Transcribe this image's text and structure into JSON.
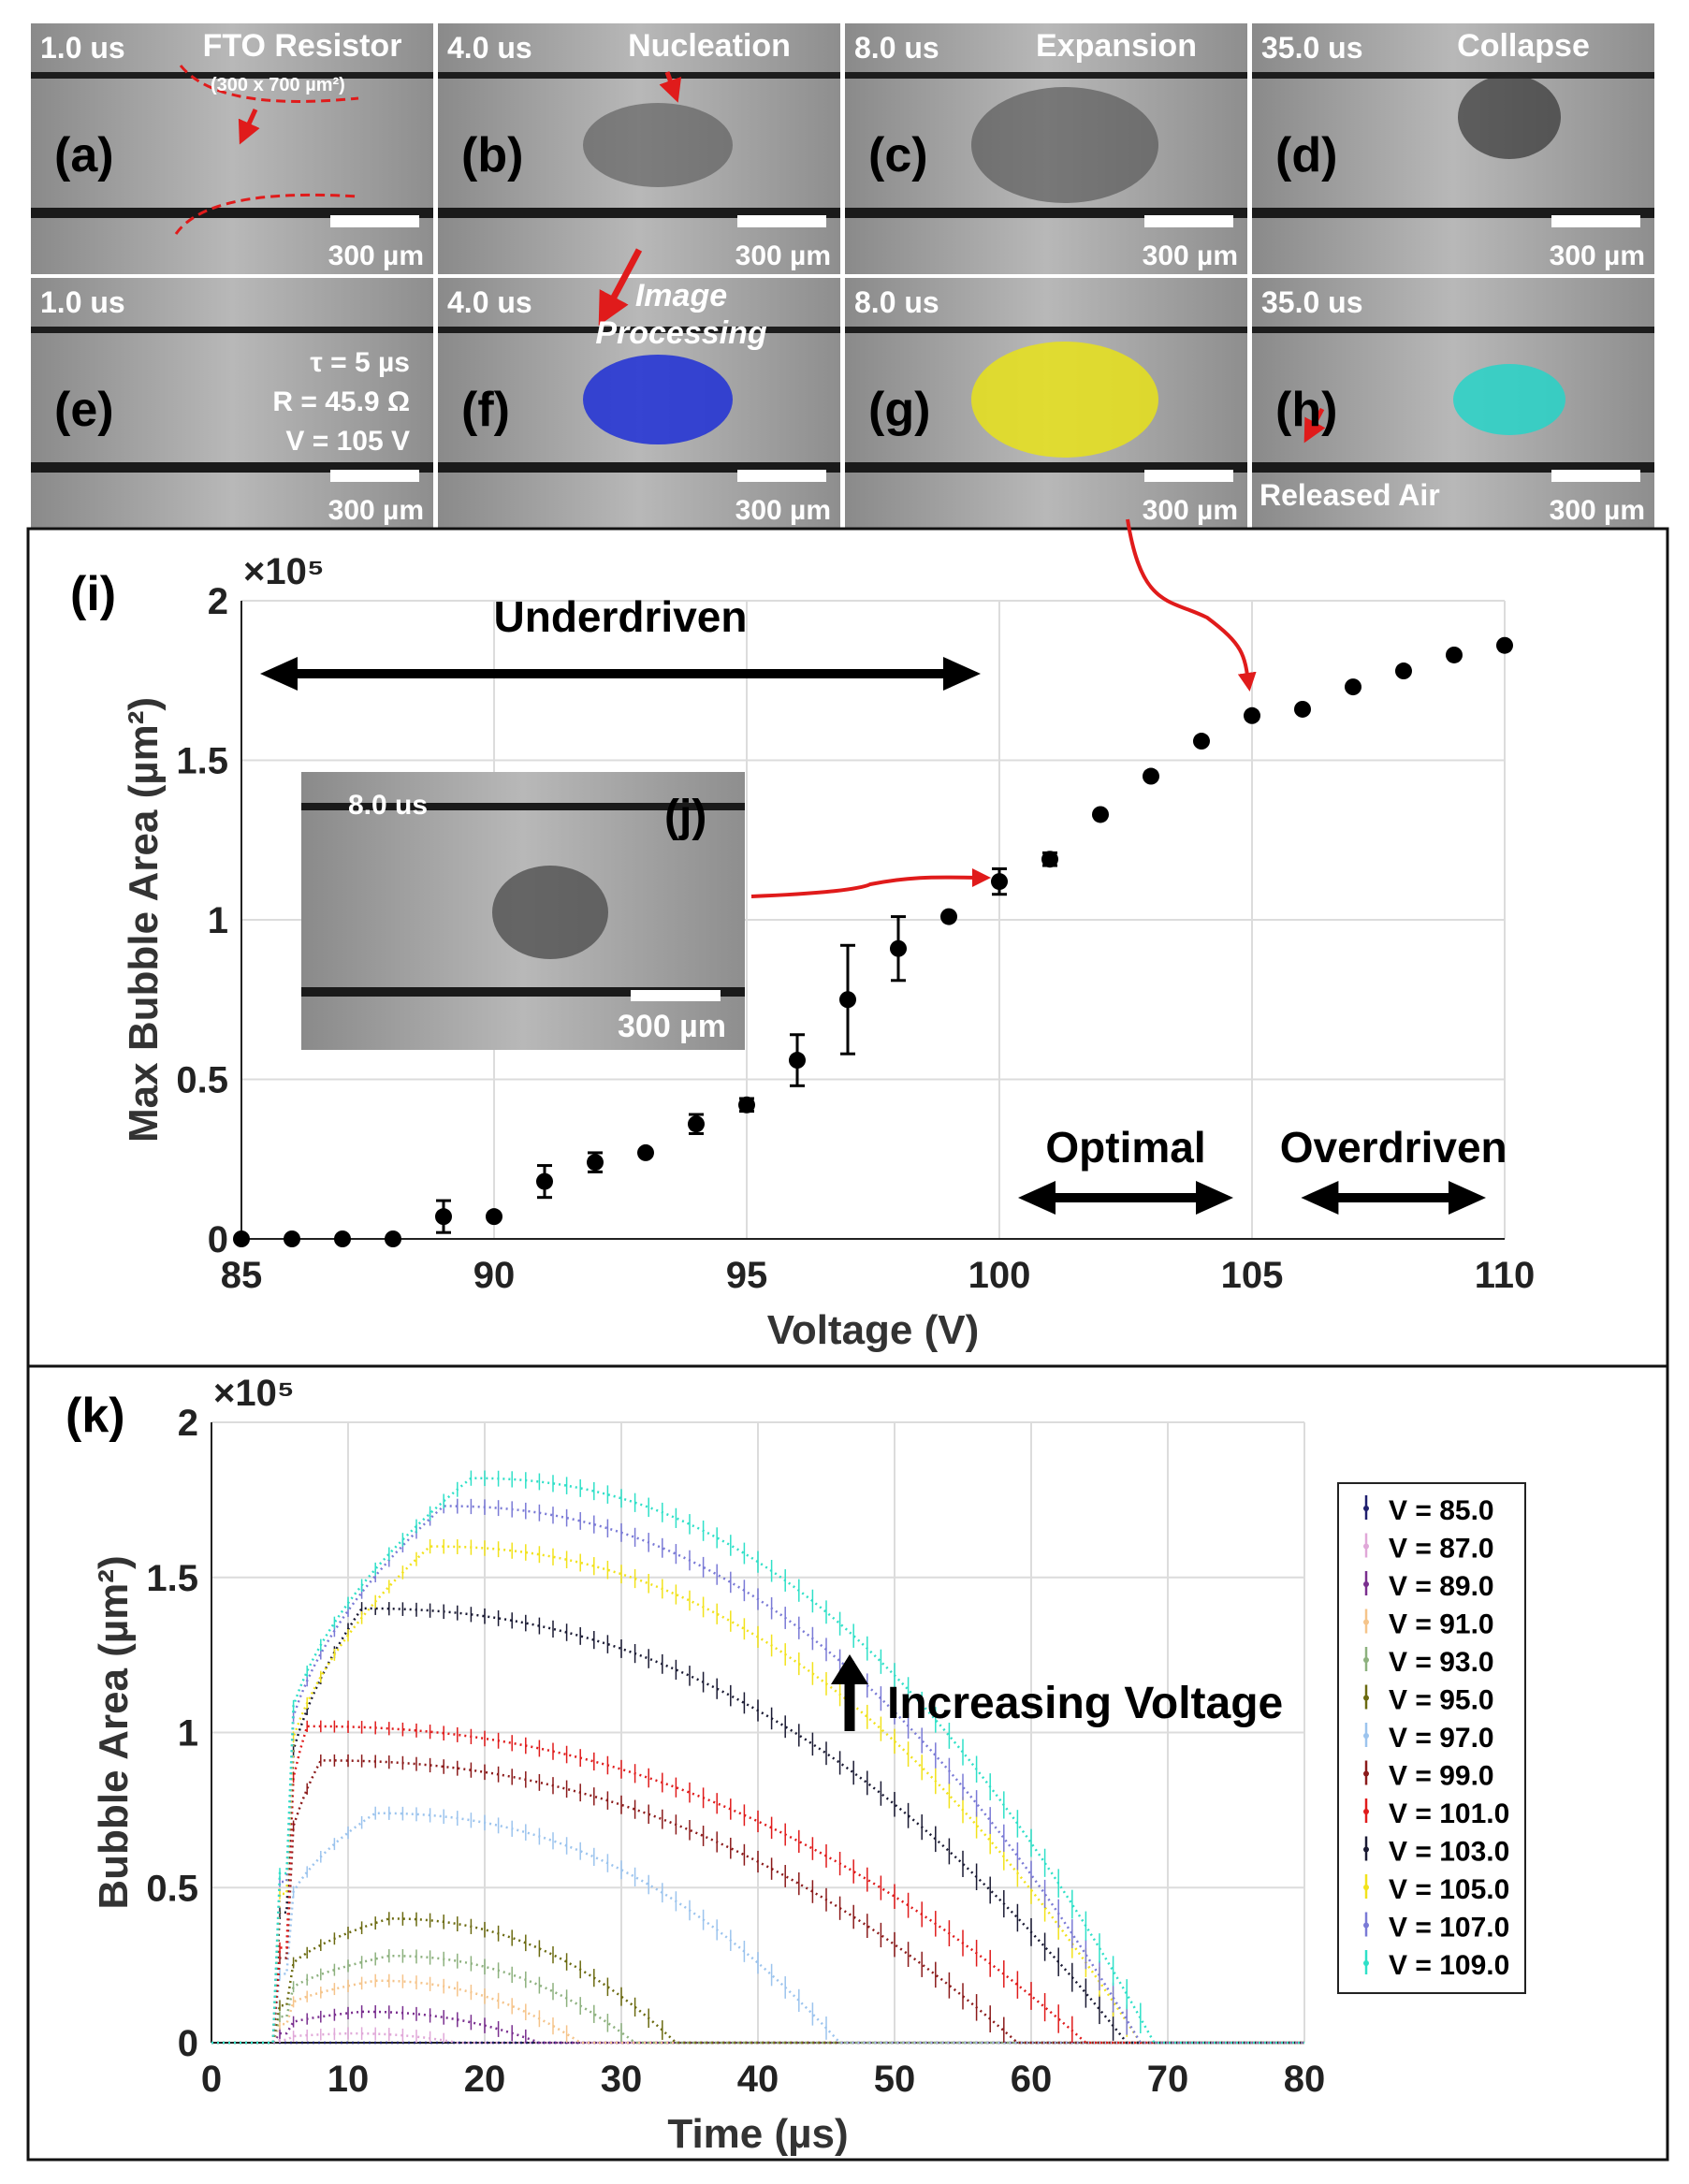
{
  "panels": [
    {
      "letter": "(a)",
      "time": "1.0 us",
      "title": "FTO Resistor",
      "scale": "300 µm",
      "dims": "(300 x 700 µm²)"
    },
    {
      "letter": "(b)",
      "time": "4.0 us",
      "title": "Nucleation",
      "scale": "300 µm"
    },
    {
      "letter": "(c)",
      "time": "8.0 us",
      "title": "Expansion",
      "scale": "300 µm"
    },
    {
      "letter": "(d)",
      "time": "35.0 us",
      "title": "Collapse",
      "scale": "300 µm"
    },
    {
      "letter": "(e)",
      "time": "1.0 us",
      "title": "",
      "scale": "300 µm",
      "params": [
        "τ = 5 µs",
        "R = 45.9 Ω",
        "V = 105 V"
      ]
    },
    {
      "letter": "(f)",
      "time": "4.0 us",
      "title": "",
      "scale": "300 µm",
      "italic": [
        "Image",
        "Processing"
      ]
    },
    {
      "letter": "(g)",
      "time": "8.0 us",
      "title": "",
      "scale": "300 µm"
    },
    {
      "letter": "(h)",
      "time": "35.0 us",
      "title": "",
      "scale": "300 µm",
      "note": "Released Air"
    }
  ],
  "inset_j": {
    "letter": "(j)",
    "time": "8.0 us",
    "scale": "300 µm"
  },
  "chart_data": [
    {
      "id": "i",
      "panel_label": "(i)",
      "type": "scatter",
      "xlabel": "Voltage (V)",
      "ylabel": "Max Bubble Area (µm²)",
      "y_multiplier": "×10⁵",
      "xlim": [
        85,
        110
      ],
      "ylim": [
        0,
        2
      ],
      "xticks": [
        "85",
        "90",
        "95",
        "100",
        "105",
        "110"
      ],
      "yticks": [
        "0",
        "0.5",
        "1",
        "1.5",
        "2"
      ],
      "grid": true,
      "x": [
        85,
        86,
        87,
        88,
        89,
        90,
        91,
        92,
        93,
        94,
        95,
        96,
        97,
        98,
        99,
        100,
        101,
        102,
        103,
        104,
        105,
        106,
        107,
        108,
        109,
        110
      ],
      "y": [
        0,
        0,
        0,
        0,
        0.07,
        0.07,
        0.18,
        0.24,
        0.27,
        0.36,
        0.42,
        0.56,
        0.75,
        0.91,
        1.01,
        1.12,
        1.19,
        1.33,
        1.45,
        1.56,
        1.64,
        1.66,
        1.73,
        1.78,
        1.83,
        1.86
      ],
      "err": [
        0,
        0,
        0,
        0,
        0.05,
        0,
        0.05,
        0.03,
        0,
        0.03,
        0.02,
        0.08,
        0.17,
        0.1,
        0,
        0.04,
        0.02,
        0,
        0,
        0,
        0,
        0,
        0,
        0,
        0,
        0
      ],
      "regions": [
        {
          "label": "Underdriven",
          "from": 85,
          "to": 100
        },
        {
          "label": "Optimal",
          "from": 100,
          "to": 105
        },
        {
          "label": "Overdriven",
          "from": 105.6,
          "to": 110
        }
      ]
    },
    {
      "id": "k",
      "panel_label": "(k)",
      "type": "line",
      "xlabel": "Time (µs)",
      "ylabel": "Bubble Area (µm²)",
      "y_multiplier": "×10⁵",
      "xlim": [
        0,
        80
      ],
      "ylim": [
        0,
        2
      ],
      "xticks": [
        "0",
        "10",
        "20",
        "30",
        "40",
        "50",
        "60",
        "70",
        "80"
      ],
      "yticks": [
        "0",
        "0.5",
        "1",
        "1.5",
        "2"
      ],
      "grid": true,
      "annotation": "Increasing Voltage",
      "legend_position": "right",
      "series": [
        {
          "name": "V = 85.0",
          "color": "#1f1f6e",
          "peak": 0.0,
          "onset": 5,
          "end": 6,
          "tpeak": 8
        },
        {
          "name": "V = 87.0",
          "color": "#e0a8d8",
          "peak": 0.03,
          "onset": 5,
          "end": 18,
          "tpeak": 10
        },
        {
          "name": "V = 89.0",
          "color": "#7a2f8f",
          "peak": 0.1,
          "onset": 5,
          "end": 24,
          "tpeak": 11
        },
        {
          "name": "V = 91.0",
          "color": "#f5c48a",
          "peak": 0.2,
          "onset": 5,
          "end": 27,
          "tpeak": 12
        },
        {
          "name": "V = 93.0",
          "color": "#8db17e",
          "peak": 0.28,
          "onset": 5,
          "end": 31,
          "tpeak": 13
        },
        {
          "name": "V = 95.0",
          "color": "#6b6a10",
          "peak": 0.4,
          "onset": 5,
          "end": 34,
          "tpeak": 13
        },
        {
          "name": "V = 97.0",
          "color": "#9cc4ee",
          "peak": 0.74,
          "onset": 5,
          "end": 46,
          "tpeak": 12
        },
        {
          "name": "V = 99.0",
          "color": "#8b1a1a",
          "peak": 0.91,
          "onset": 5,
          "end": 59,
          "tpeak": 8
        },
        {
          "name": "V = 101.0",
          "color": "#e01b1b",
          "peak": 1.02,
          "onset": 5,
          "end": 64,
          "tpeak": 7
        },
        {
          "name": "V = 103.0",
          "color": "#1a1a33",
          "peak": 1.4,
          "onset": 5,
          "end": 67,
          "tpeak": 11
        },
        {
          "name": "V = 105.0",
          "color": "#f2e21b",
          "peak": 1.6,
          "onset": 5,
          "end": 68,
          "tpeak": 16
        },
        {
          "name": "V = 107.0",
          "color": "#7a7ad6",
          "peak": 1.73,
          "onset": 5,
          "end": 68,
          "tpeak": 17
        },
        {
          "name": "V = 109.0",
          "color": "#2fe0c8",
          "peak": 1.82,
          "onset": 5,
          "end": 69,
          "tpeak": 19
        }
      ]
    }
  ]
}
